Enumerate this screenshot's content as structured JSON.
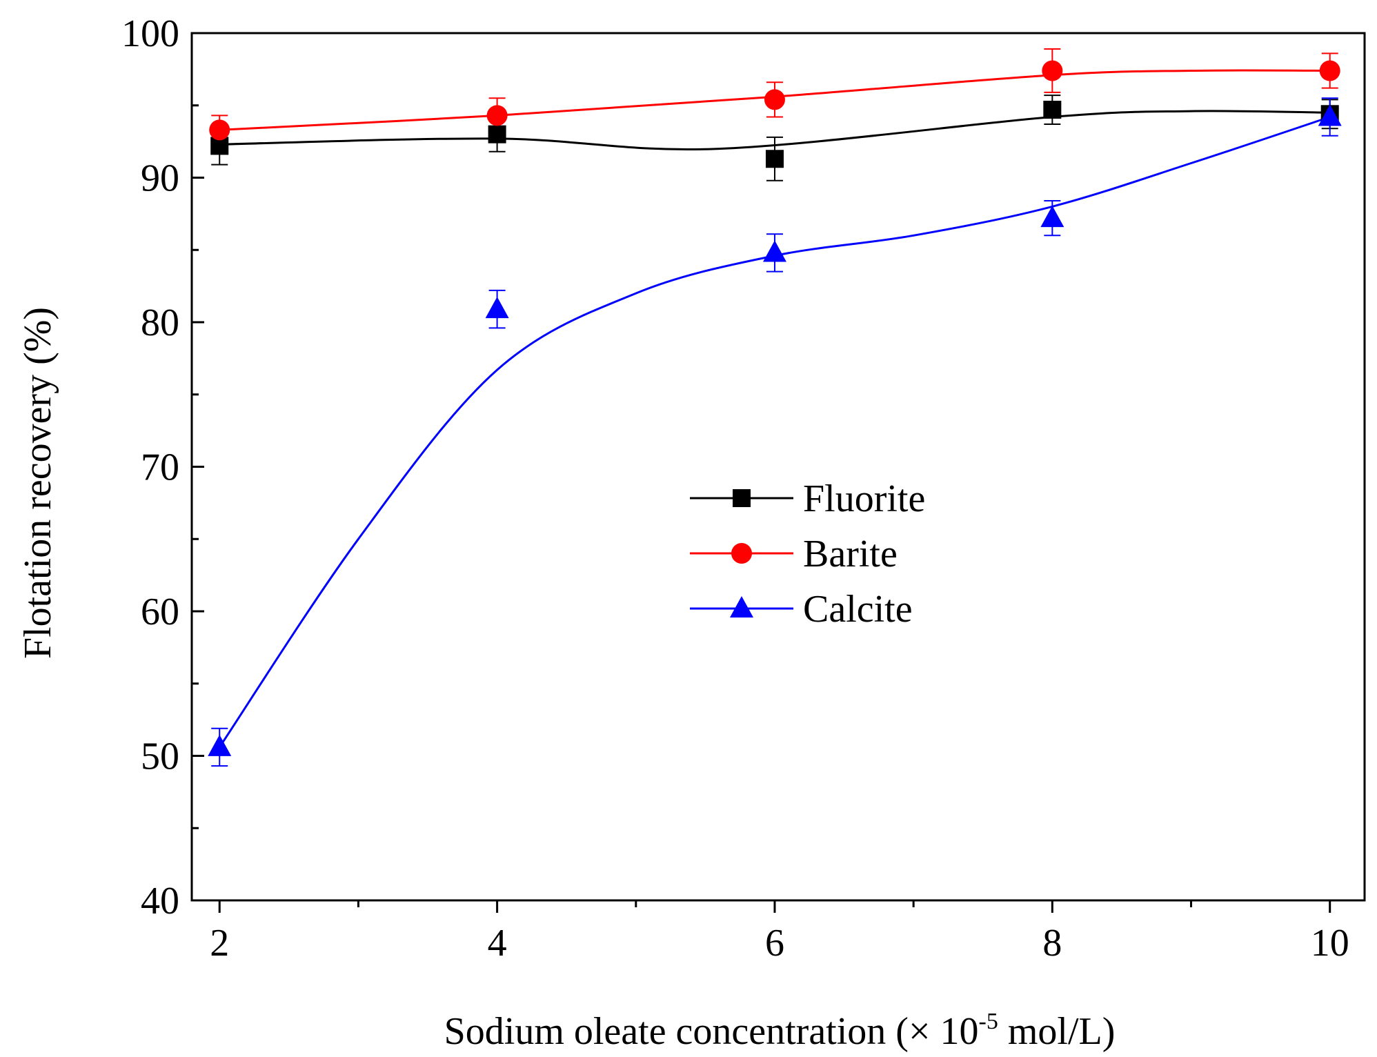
{
  "chart_data": {
    "type": "line",
    "title": "",
    "xlabel_main": "Sodium oleate concentration (×  10",
    "xlabel_sup": "-5",
    "xlabel_end": " mol/L)",
    "ylabel": "Flotation recovery (%)",
    "xlim": [
      1.8,
      10.25
    ],
    "ylim": [
      40,
      100
    ],
    "x_ticks": [
      2,
      4,
      6,
      8,
      10
    ],
    "x_tick_labels": [
      "2",
      "4",
      "6",
      "8",
      "10"
    ],
    "x_minor_ticks": [
      3,
      5,
      7,
      9
    ],
    "y_ticks": [
      40,
      50,
      60,
      70,
      80,
      90,
      100
    ],
    "y_tick_labels": [
      "40",
      "50",
      "60",
      "70",
      "80",
      "90",
      "100"
    ],
    "y_minor_ticks": [
      45,
      55,
      65,
      75,
      85,
      95
    ],
    "grid": false,
    "legend_position": "center",
    "x": [
      2,
      4,
      6,
      8,
      10
    ],
    "series": [
      {
        "name": "Fluorite",
        "color": "#000000",
        "marker": "square",
        "values": [
          92.2,
          93.0,
          91.3,
          94.7,
          94.4
        ],
        "errors": [
          1.3,
          1.2,
          1.5,
          1.0,
          1.0
        ],
        "fit_curve": [
          [
            2,
            92.3
          ],
          [
            4,
            92.7
          ],
          [
            5.6,
            92.0
          ],
          [
            8,
            94.2
          ],
          [
            9,
            94.6
          ],
          [
            10,
            94.5
          ]
        ]
      },
      {
        "name": "Barite",
        "color": "#ff0000",
        "marker": "circle",
        "values": [
          93.3,
          94.3,
          95.4,
          97.4,
          97.4
        ],
        "errors": [
          1.0,
          1.2,
          1.2,
          1.5,
          1.2
        ],
        "fit_curve": [
          [
            2,
            93.3
          ],
          [
            4,
            94.3
          ],
          [
            6,
            95.6
          ],
          [
            8,
            97.1
          ],
          [
            9,
            97.4
          ],
          [
            10,
            97.4
          ]
        ]
      },
      {
        "name": "Calcite",
        "color": "#0000ff",
        "marker": "triangle",
        "values": [
          50.6,
          80.9,
          84.8,
          87.2,
          94.2
        ],
        "errors": [
          1.3,
          1.3,
          1.3,
          1.2,
          1.3
        ],
        "fit_curve": [
          [
            2,
            50.6
          ],
          [
            3,
            65.0
          ],
          [
            4,
            76.7
          ],
          [
            5,
            82.0
          ],
          [
            6,
            84.6
          ],
          [
            7,
            86.0
          ],
          [
            8,
            88.0
          ],
          [
            9,
            91.0
          ],
          [
            10,
            94.2
          ]
        ]
      }
    ]
  }
}
